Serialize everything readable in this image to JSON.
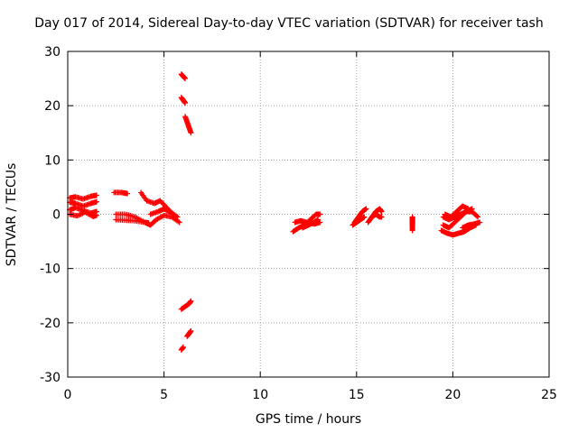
{
  "chart_data": {
    "type": "scatter",
    "title": "Day 017 of 2014, Sidereal Day-to-day VTEC variation (SDTVAR) for receiver tash",
    "xlabel": "GPS time / hours",
    "ylabel": "SDTVAR / TECUs",
    "xlim": [
      0,
      25
    ],
    "ylim": [
      -30,
      30
    ],
    "xticks": [
      0,
      5,
      10,
      15,
      20,
      25
    ],
    "yticks": [
      -30,
      -20,
      -10,
      0,
      10,
      20,
      30
    ],
    "xtick_labels": [
      "0",
      "5",
      "10",
      "15",
      "20",
      "25"
    ],
    "ytick_labels": [
      "-30",
      "-20",
      "-10",
      "0",
      "10",
      "20",
      "30"
    ],
    "grid": true,
    "marker": "+",
    "color": "#ff0000",
    "series": [
      {
        "name": "SDTVAR",
        "segments": [
          {
            "x": [
              0.1,
              0.4,
              0.8,
              1.2,
              1.5
            ],
            "y": [
              3.0,
              3.2,
              2.8,
              3.3,
              3.5
            ]
          },
          {
            "x": [
              0.1,
              0.4,
              0.8,
              1.2,
              1.5
            ],
            "y": [
              2.2,
              2.0,
              1.5,
              2.0,
              2.3
            ]
          },
          {
            "x": [
              0.1,
              0.4,
              0.8,
              1.2,
              1.5
            ],
            "y": [
              0.8,
              1.2,
              0.7,
              0.2,
              0.5
            ]
          },
          {
            "x": [
              0.1,
              0.5,
              0.9,
              1.3,
              1.5
            ],
            "y": [
              0.0,
              -0.3,
              0.4,
              -0.4,
              -0.2
            ]
          },
          {
            "x": [
              2.4,
              2.8,
              3.1
            ],
            "y": [
              4.0,
              4.0,
              3.8
            ]
          },
          {
            "x": [
              2.5,
              3.0,
              3.5,
              4.0,
              4.3,
              4.6,
              5.0,
              5.4,
              5.8
            ],
            "y": [
              0.0,
              0.0,
              -0.5,
              -1.5,
              -2.0,
              -1.0,
              -0.2,
              -0.5,
              -1.5
            ]
          },
          {
            "x": [
              2.5,
              3.0,
              3.5,
              4.0,
              4.2
            ],
            "y": [
              -1.0,
              -1.1,
              -1.2,
              -1.5,
              -1.6
            ]
          },
          {
            "x": [
              3.8,
              4.1,
              4.5,
              4.8,
              5.2,
              5.6
            ],
            "y": [
              4.0,
              2.5,
              2.0,
              2.5,
              1.0,
              -0.5
            ]
          },
          {
            "x": [
              4.3,
              4.7,
              5.0,
              5.3,
              5.7
            ],
            "y": [
              0.0,
              0.5,
              1.0,
              0.5,
              -0.5
            ]
          },
          {
            "x": [
              5.9,
              6.0,
              6.1
            ],
            "y": [
              25.8,
              25.4,
              25.0
            ]
          },
          {
            "x": [
              5.9,
              6.0,
              6.1
            ],
            "y": [
              21.5,
              21.0,
              20.5
            ]
          },
          {
            "x": [
              6.1,
              6.2,
              6.3,
              6.4
            ],
            "y": [
              18.0,
              17.0,
              16.0,
              15.0
            ]
          },
          {
            "x": [
              5.9,
              6.1,
              6.3,
              6.4
            ],
            "y": [
              -17.5,
              -17.0,
              -16.5,
              -16.0
            ]
          },
          {
            "x": [
              6.2,
              6.3,
              6.4
            ],
            "y": [
              -22.5,
              -22.0,
              -21.5
            ]
          },
          {
            "x": [
              5.9,
              6.0
            ],
            "y": [
              -25.0,
              -24.5
            ]
          },
          {
            "x": [
              11.7,
              12.0,
              12.3,
              12.6,
              12.9,
              13.1
            ],
            "y": [
              -3.2,
              -2.5,
              -2.0,
              -1.0,
              0.0,
              0.0
            ]
          },
          {
            "x": [
              11.8,
              12.1,
              12.4,
              12.8,
              13.1
            ],
            "y": [
              -1.5,
              -1.2,
              -1.5,
              -1.8,
              -1.5
            ]
          },
          {
            "x": [
              12.2,
              12.5,
              12.8,
              13.0
            ],
            "y": [
              -2.5,
              -2.0,
              -1.5,
              -1.0
            ]
          },
          {
            "x": [
              14.8,
              15.0,
              15.2,
              15.4
            ],
            "y": [
              -2.0,
              -1.5,
              -1.0,
              -0.5
            ]
          },
          {
            "x": [
              14.9,
              15.1,
              15.3,
              15.5
            ],
            "y": [
              -1.5,
              -0.5,
              0.5,
              1.0
            ]
          },
          {
            "x": [
              15.6,
              15.8,
              16.0,
              16.2,
              16.3
            ],
            "y": [
              -1.5,
              -0.5,
              0.5,
              1.0,
              0.5
            ]
          },
          {
            "x": [
              15.8,
              16.0,
              16.2,
              16.3
            ],
            "y": [
              -0.5,
              0.0,
              -0.5,
              -0.5
            ]
          },
          {
            "x": [
              17.9,
              17.9,
              17.9,
              17.9,
              17.9
            ],
            "y": [
              -0.5,
              -1.0,
              -1.5,
              -2.0,
              -3.0
            ]
          },
          {
            "x": [
              19.4,
              19.7,
              20.0,
              20.3,
              20.6,
              20.9,
              21.2
            ],
            "y": [
              -3.0,
              -3.5,
              -3.8,
              -3.5,
              -3.2,
              -2.5,
              -2.0
            ]
          },
          {
            "x": [
              19.5,
              19.8,
              20.1,
              20.4,
              20.7,
              21.0,
              21.3
            ],
            "y": [
              -2.0,
              -2.5,
              -1.5,
              -0.5,
              0.5,
              0.5,
              -0.5
            ]
          },
          {
            "x": [
              19.5,
              19.8,
              20.1,
              20.4,
              20.7,
              21.0
            ],
            "y": [
              -0.5,
              -1.0,
              -0.5,
              0.0,
              0.5,
              1.0
            ]
          },
          {
            "x": [
              19.6,
              19.9,
              20.2,
              20.5,
              20.8
            ],
            "y": [
              0.0,
              -0.5,
              0.5,
              1.5,
              1.0
            ]
          },
          {
            "x": [
              20.5,
              20.8,
              21.1,
              21.4
            ],
            "y": [
              -2.5,
              -2.0,
              -1.8,
              -1.5
            ]
          }
        ]
      }
    ]
  }
}
